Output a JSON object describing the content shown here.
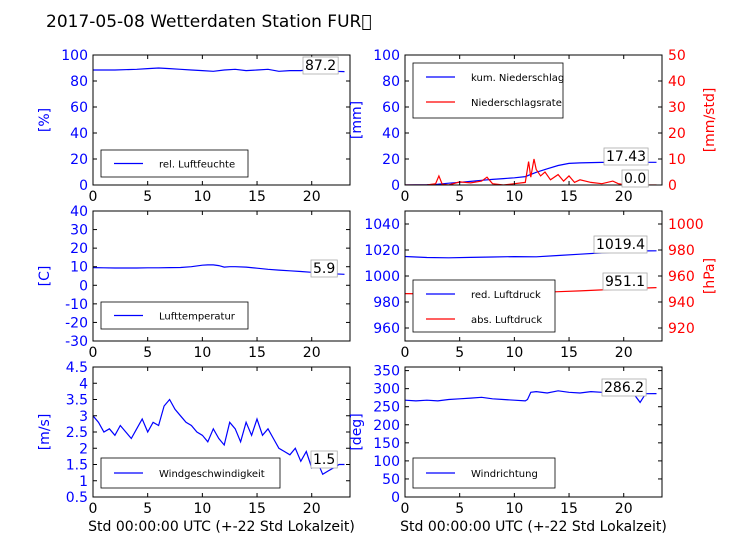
{
  "title": "2017-05-08 Wetterdaten Station FUR\u0000",
  "colors": {
    "primary": "#0000ff",
    "secondary": "#ff0000",
    "text": "#000000"
  },
  "chart_data": [
    {
      "type": "line",
      "panel": "humidity",
      "ylabel": "[%]",
      "xlabel": "",
      "xlim": [
        0,
        23.5
      ],
      "ylim": [
        0,
        100
      ],
      "xticks": [
        0,
        5,
        10,
        15,
        20
      ],
      "yticks": [
        0,
        20,
        40,
        60,
        80,
        100
      ],
      "legend_position": "lower-left",
      "annotation": "87.2",
      "series": [
        {
          "name": "rel. Luftfeuchte",
          "color": "#0000ff",
          "x": [
            0,
            2,
            4,
            5,
            6,
            7,
            8,
            9,
            10,
            11,
            12,
            13,
            14,
            15,
            16,
            17,
            18,
            19,
            20,
            21,
            22,
            23
          ],
          "y": [
            88.5,
            88.5,
            89,
            89.5,
            90,
            89.5,
            89,
            88.5,
            88,
            87.5,
            88.5,
            89,
            88,
            88.5,
            89,
            87.5,
            88,
            88,
            89,
            88,
            87.5,
            87.2
          ]
        }
      ]
    },
    {
      "type": "line",
      "panel": "precipitation",
      "ylabel": "[mm]",
      "ylabel_right": "[mm/std]",
      "xlabel": "",
      "xlim": [
        0,
        23.5
      ],
      "ylim": [
        0,
        100
      ],
      "ylim_right": [
        0,
        50
      ],
      "xticks": [
        0,
        5,
        10,
        15,
        20
      ],
      "yticks": [
        0,
        20,
        40,
        60,
        80,
        100
      ],
      "yticks_right": [
        0,
        10,
        20,
        30,
        40,
        50
      ],
      "legend_position": "upper-left",
      "annotations": [
        "17.43",
        "0.0"
      ],
      "series": [
        {
          "name": "kum. Niederschlag",
          "color": "#0000ff",
          "axis": "left",
          "x": [
            0,
            1,
            2,
            3,
            4,
            5,
            6,
            7,
            8,
            9,
            10,
            11,
            12,
            13,
            14,
            15,
            16,
            17,
            18,
            19,
            20,
            21,
            22,
            23
          ],
          "y": [
            0,
            0.1,
            0.2,
            0.6,
            1.4,
            2.1,
            2.8,
            3.6,
            4.3,
            4.9,
            5.5,
            6.5,
            9.8,
            12.5,
            15.0,
            16.6,
            17.0,
            17.2,
            17.35,
            17.4,
            17.43,
            17.43,
            17.43,
            17.43
          ]
        },
        {
          "name": "Niederschlagsrate",
          "color": "#ff0000",
          "axis": "right",
          "x": [
            0,
            2,
            2.8,
            3.1,
            3.4,
            4,
            5,
            6,
            7,
            7.5,
            8,
            9,
            10,
            11,
            11.3,
            11.5,
            11.8,
            12,
            12.4,
            12.8,
            13.3,
            14,
            14.5,
            15,
            15.5,
            16,
            17,
            18,
            19,
            19.5,
            20,
            21,
            22,
            23
          ],
          "y": [
            0,
            0,
            0.5,
            3.5,
            0.3,
            0,
            1.2,
            0.8,
            1.5,
            3.0,
            0.5,
            0,
            0.5,
            1.0,
            9.0,
            3.0,
            10.0,
            6.0,
            3.5,
            5.0,
            2.0,
            4.0,
            1.5,
            3.5,
            1.0,
            2.0,
            1.0,
            0.5,
            1.5,
            0.5,
            0.2,
            0,
            0,
            0
          ]
        }
      ]
    },
    {
      "type": "line",
      "panel": "temperature",
      "ylabel": "[C]",
      "xlabel": "",
      "xlim": [
        0,
        23.5
      ],
      "ylim": [
        -30,
        40
      ],
      "xticks": [
        0,
        5,
        10,
        15,
        20
      ],
      "yticks": [
        -30,
        -20,
        -10,
        0,
        10,
        20,
        30,
        40
      ],
      "legend_position": "lower-left",
      "annotation": "5.9",
      "series": [
        {
          "name": "Lufttemperatur",
          "color": "#0000ff",
          "x": [
            0,
            1,
            2,
            3,
            4,
            5,
            6,
            7,
            8,
            9,
            10,
            10.5,
            11,
            11.5,
            12,
            12.5,
            13,
            14,
            15,
            16,
            17,
            18,
            19,
            20,
            21,
            22,
            23
          ],
          "y": [
            9.5,
            9.4,
            9.3,
            9.3,
            9.3,
            9.4,
            9.4,
            9.5,
            9.6,
            10.0,
            10.8,
            11.0,
            11.0,
            10.6,
            9.8,
            10.0,
            10.0,
            9.8,
            9.2,
            8.6,
            8.2,
            7.8,
            7.4,
            7.0,
            6.5,
            6.2,
            5.9
          ]
        }
      ]
    },
    {
      "type": "line",
      "panel": "pressure",
      "ylabel_right": "[hPa]",
      "xlabel": "",
      "xlim": [
        0,
        23.5
      ],
      "ylim": [
        950,
        1050
      ],
      "ylim_right": [
        910,
        1010
      ],
      "xticks": [
        0,
        5,
        10,
        15,
        20
      ],
      "yticks": [
        960,
        980,
        1000,
        1020,
        1040
      ],
      "yticks_right": [
        920,
        940,
        960,
        980,
        1000
      ],
      "legend_position": "lower-left",
      "annotations": [
        "1019.4",
        "951.1"
      ],
      "series": [
        {
          "name": "red. Luftdruck",
          "color": "#0000ff",
          "axis": "left",
          "x": [
            0,
            2,
            4,
            6,
            8,
            10,
            12,
            14,
            16,
            18,
            20,
            22,
            23
          ],
          "y": [
            1015.0,
            1014.2,
            1014.0,
            1014.3,
            1014.6,
            1014.9,
            1014.8,
            1015.8,
            1016.8,
            1017.8,
            1018.8,
            1019.3,
            1019.4
          ]
        },
        {
          "name": "abs. Luftdruck",
          "color": "#ff0000",
          "axis": "right",
          "x": [
            0,
            2,
            4,
            6,
            8,
            10,
            12,
            14,
            16,
            18,
            20,
            22,
            23
          ],
          "y": [
            946.5,
            946.2,
            946.0,
            946.3,
            946.7,
            947.0,
            947.4,
            947.9,
            948.5,
            949.3,
            950.1,
            950.8,
            951.1
          ]
        }
      ]
    },
    {
      "type": "line",
      "panel": "windspeed",
      "ylabel": "[m/s]",
      "xlabel": "Std 00:00:00 UTC (+-22 Std Lokalzeit)",
      "xlim": [
        0,
        23.5
      ],
      "ylim": [
        0.5,
        4.5
      ],
      "xticks": [
        0,
        5,
        10,
        15,
        20
      ],
      "yticks": [
        0.5,
        1.0,
        1.5,
        2.0,
        2.5,
        3.0,
        3.5,
        4.0,
        4.5
      ],
      "legend_position": "lower-left",
      "annotation": "1.5",
      "series": [
        {
          "name": "Windgeschwindigkeit",
          "color": "#0000ff",
          "x": [
            0,
            0.5,
            1,
            1.5,
            2,
            2.5,
            3,
            3.5,
            4,
            4.5,
            5,
            5.5,
            6,
            6.5,
            7,
            7.5,
            8,
            8.5,
            9,
            9.5,
            10,
            10.5,
            11,
            11.5,
            12,
            12.5,
            13,
            13.5,
            14,
            14.5,
            15,
            15.5,
            16,
            16.5,
            17,
            17.5,
            18,
            18.5,
            19,
            19.5,
            20,
            20.5,
            21,
            21.5,
            22,
            22.5,
            23
          ],
          "y": [
            3.0,
            2.8,
            2.5,
            2.6,
            2.4,
            2.7,
            2.5,
            2.3,
            2.6,
            2.9,
            2.5,
            2.8,
            2.7,
            3.3,
            3.5,
            3.2,
            3.0,
            2.8,
            2.7,
            2.5,
            2.4,
            2.2,
            2.6,
            2.3,
            2.1,
            2.8,
            2.6,
            2.2,
            2.8,
            2.4,
            2.9,
            2.4,
            2.6,
            2.3,
            2.0,
            1.9,
            1.8,
            2.0,
            1.6,
            1.9,
            1.4,
            1.6,
            1.2,
            1.3,
            1.4,
            1.5,
            1.5
          ]
        }
      ]
    },
    {
      "type": "line",
      "panel": "winddirection",
      "ylabel": "[deg]",
      "xlabel": "Std 00:00:00 UTC (+-22 Std Lokalzeit)",
      "xlim": [
        0,
        23.5
      ],
      "ylim": [
        0,
        360
      ],
      "xticks": [
        0,
        5,
        10,
        15,
        20
      ],
      "yticks": [
        0,
        50,
        100,
        150,
        200,
        250,
        300,
        350
      ],
      "legend_position": "lower-left",
      "annotation": "286.2",
      "series": [
        {
          "name": "Windrichtung",
          "color": "#0000ff",
          "x": [
            0,
            1,
            2,
            3,
            4,
            5,
            6,
            7,
            8,
            9,
            10,
            11,
            11.2,
            11.5,
            12,
            13,
            14,
            15,
            16,
            17,
            18,
            19,
            20,
            21,
            21.5,
            22,
            23
          ],
          "y": [
            268,
            266,
            268,
            266,
            270,
            272,
            274,
            276,
            272,
            270,
            268,
            266,
            270,
            290,
            292,
            288,
            294,
            290,
            288,
            292,
            290,
            288,
            284,
            282,
            262,
            286,
            286.2
          ]
        }
      ]
    }
  ]
}
